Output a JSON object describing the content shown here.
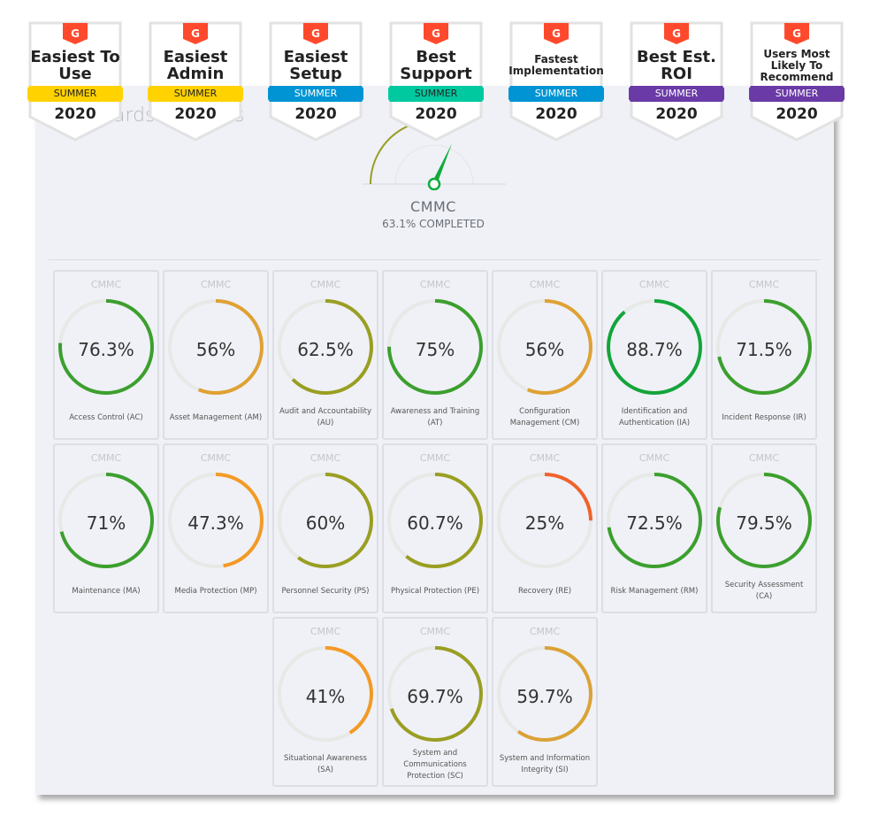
{
  "header_fragments": [
    "ards",
    "s"
  ],
  "badges": [
    {
      "title": "Easiest To Use",
      "season": "SUMMER",
      "year": "2020",
      "color": "#ffd200",
      "text_color": "#222"
    },
    {
      "title": "Easiest Admin",
      "season": "SUMMER",
      "year": "2020",
      "color": "#ffd200",
      "text_color": "#222"
    },
    {
      "title": "Easiest Setup",
      "season": "SUMMER",
      "year": "2020",
      "color": "#0094d4",
      "text_color": "#fff"
    },
    {
      "title": "Best Support",
      "season": "SUMMER",
      "year": "2020",
      "color": "#00c9a0",
      "text_color": "#222"
    },
    {
      "title": "Fastest Implementation",
      "season": "SUMMER",
      "year": "2020",
      "color": "#0094d4",
      "text_color": "#fff"
    },
    {
      "title": "Best Est. ROI",
      "season": "SUMMER",
      "year": "2020",
      "color": "#6a3aa6",
      "text_color": "#fff"
    },
    {
      "title": "Users Most Likely To Recommend",
      "season": "SUMMER",
      "year": "2020",
      "color": "#6a3aa6",
      "text_color": "#fff"
    }
  ],
  "badge_logo_color": "#ff492c",
  "overall": {
    "title": "CMMC",
    "completed_label": "63.1% COMPLETED",
    "percent": 63.1,
    "color": "#9a9e22",
    "needle_color": "#0eab3a"
  },
  "domains": [
    {
      "header": "CMMC",
      "percent": 76.3,
      "value": "76.3%",
      "label": "Access Control (AC)",
      "color": "#3c9f2e"
    },
    {
      "header": "CMMC",
      "percent": 56,
      "value": "56%",
      "label": "Asset Management (AM)",
      "color": "#dfa133"
    },
    {
      "header": "CMMC",
      "percent": 62.5,
      "value": "62.5%",
      "label": "Audit and Accountability (AU)",
      "color": "#9a9e22"
    },
    {
      "header": "CMMC",
      "percent": 75,
      "value": "75%",
      "label": "Awareness and Training (AT)",
      "color": "#3c9f2e"
    },
    {
      "header": "CMMC",
      "percent": 56,
      "value": "56%",
      "label": "Configuration Management (CM)",
      "color": "#dfa133"
    },
    {
      "header": "CMMC",
      "percent": 88.7,
      "value": "88.7%",
      "label": "Identification and Authentication (IA)",
      "color": "#13a53a"
    },
    {
      "header": "CMMC",
      "percent": 71.5,
      "value": "71.5%",
      "label": "Incident Response (IR)",
      "color": "#3c9f2e"
    },
    {
      "header": "CMMC",
      "percent": 71,
      "value": "71%",
      "label": "Maintenance (MA)",
      "color": "#3c9f2e"
    },
    {
      "header": "CMMC",
      "percent": 47.3,
      "value": "47.3%",
      "label": "Media Protection (MP)",
      "color": "#f39a26"
    },
    {
      "header": "CMMC",
      "percent": 60,
      "value": "60%",
      "label": "Personnel Security (PS)",
      "color": "#9a9e22"
    },
    {
      "header": "CMMC",
      "percent": 60.7,
      "value": "60.7%",
      "label": "Physical Protection (PE)",
      "color": "#9a9e22"
    },
    {
      "header": "CMMC",
      "percent": 25,
      "value": "25%",
      "label": "Recovery (RE)",
      "color": "#f1622c"
    },
    {
      "header": "CMMC",
      "percent": 72.5,
      "value": "72.5%",
      "label": "Risk Management (RM)",
      "color": "#3c9f2e"
    },
    {
      "header": "CMMC",
      "percent": 79.5,
      "value": "79.5%",
      "label": "Security Assessment (CA)",
      "color": "#3c9f2e"
    },
    {
      "header": "CMMC",
      "percent": 41,
      "value": "41%",
      "label": "Situational Awareness (SA)",
      "color": "#f39a26"
    },
    {
      "header": "CMMC",
      "percent": 69.7,
      "value": "69.7%",
      "label": "System and Communications Protection (SC)",
      "color": "#9a9e22"
    },
    {
      "header": "CMMC",
      "percent": 59.7,
      "value": "59.7%",
      "label": "System and Information Integrity (SI)",
      "color": "#dba235"
    }
  ]
}
